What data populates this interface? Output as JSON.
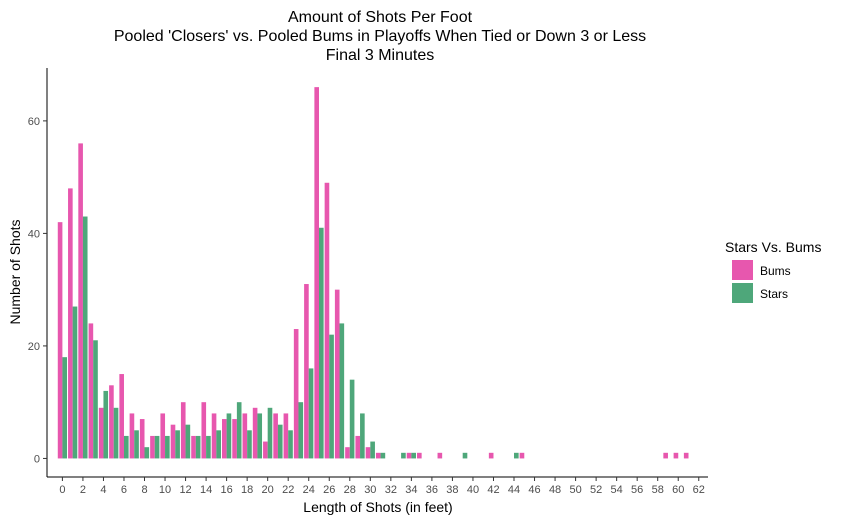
{
  "chart_data": {
    "type": "bar",
    "title": [
      "Amount of Shots Per Foot",
      "Pooled 'Closers' vs. Pooled Bums in Playoffs When Tied or Down 3 or Less",
      "Final 3 Minutes"
    ],
    "xlabel": "Length of Shots (in feet)",
    "ylabel": "Number of Shots",
    "xlim": [
      -1.5,
      62.9
    ],
    "ylim": [
      -3.3,
      69.4
    ],
    "x_ticks": [
      0,
      2,
      4,
      6,
      8,
      10,
      12,
      14,
      16,
      18,
      20,
      22,
      24,
      26,
      28,
      30,
      32,
      34,
      36,
      38,
      40,
      42,
      44,
      46,
      48,
      50,
      52,
      54,
      56,
      58,
      60,
      62
    ],
    "y_ticks": [
      0,
      20,
      40,
      60
    ],
    "grid": false,
    "legend": {
      "title": "Stars Vs. Bums",
      "position": "right"
    },
    "colors": {
      "Bums": "#E757AE",
      "Stars": "#4EA77A"
    },
    "series": [
      {
        "name": "Bums",
        "points": [
          [
            0,
            42
          ],
          [
            1,
            48
          ],
          [
            2,
            56
          ],
          [
            3,
            24
          ],
          [
            4,
            9
          ],
          [
            5,
            13
          ],
          [
            6,
            15
          ],
          [
            7,
            8
          ],
          [
            8,
            7
          ],
          [
            9,
            4
          ],
          [
            10,
            8
          ],
          [
            11,
            6
          ],
          [
            12,
            10
          ],
          [
            13,
            4
          ],
          [
            14,
            10
          ],
          [
            15,
            8
          ],
          [
            16,
            7
          ],
          [
            17,
            7
          ],
          [
            18,
            8
          ],
          [
            19,
            9
          ],
          [
            20,
            3
          ],
          [
            21,
            8
          ],
          [
            22,
            8
          ],
          [
            23,
            23
          ],
          [
            24,
            31
          ],
          [
            25,
            66
          ],
          [
            26,
            49
          ],
          [
            27,
            30
          ],
          [
            28,
            2
          ],
          [
            29,
            4
          ],
          [
            30,
            2
          ],
          [
            31,
            1
          ],
          [
            34,
            1
          ],
          [
            35,
            1
          ],
          [
            37,
            1
          ],
          [
            42,
            1
          ],
          [
            45,
            1
          ],
          [
            59,
            1
          ],
          [
            60,
            1
          ],
          [
            61,
            1
          ]
        ]
      },
      {
        "name": "Stars",
        "points": [
          [
            0,
            18
          ],
          [
            1,
            27
          ],
          [
            2,
            43
          ],
          [
            3,
            21
          ],
          [
            4,
            12
          ],
          [
            5,
            9
          ],
          [
            6,
            4
          ],
          [
            7,
            5
          ],
          [
            8,
            2
          ],
          [
            9,
            4
          ],
          [
            10,
            4
          ],
          [
            11,
            5
          ],
          [
            12,
            6
          ],
          [
            13,
            4
          ],
          [
            14,
            4
          ],
          [
            15,
            5
          ],
          [
            16,
            8
          ],
          [
            17,
            10
          ],
          [
            18,
            5
          ],
          [
            19,
            8
          ],
          [
            20,
            9
          ],
          [
            21,
            6
          ],
          [
            22,
            5
          ],
          [
            23,
            10
          ],
          [
            24,
            16
          ],
          [
            25,
            41
          ],
          [
            26,
            22
          ],
          [
            27,
            24
          ],
          [
            28,
            14
          ],
          [
            29,
            8
          ],
          [
            30,
            3
          ],
          [
            31,
            1
          ],
          [
            33,
            1
          ],
          [
            34,
            1
          ],
          [
            39,
            1
          ],
          [
            44,
            1
          ]
        ]
      }
    ]
  }
}
